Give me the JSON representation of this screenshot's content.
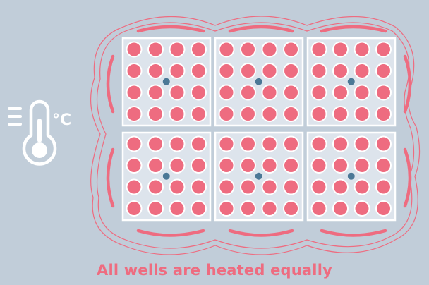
{
  "caption": "All wells are heated equally",
  "temperature_unit": "°C",
  "icons": {
    "thermometer": "thermometer-icon",
    "heat_lines": "heat-lines-icon"
  },
  "plate": {
    "blocks": 6,
    "block_rows": 2,
    "block_cols": 3,
    "wells_per_block": 16,
    "well_grid": [
      4,
      4
    ],
    "sensor_wells_per_block": 1
  },
  "colors": {
    "background": "#c1cdd9",
    "well": "#ee6c80",
    "well_border": "#ffffff",
    "block_fill": "#dde4ec",
    "block_border": "#ffffff",
    "sensor": "#4b7896",
    "heat_rings": "#ee6c80",
    "icon": "#ffffff",
    "caption": "#ee6c80"
  }
}
